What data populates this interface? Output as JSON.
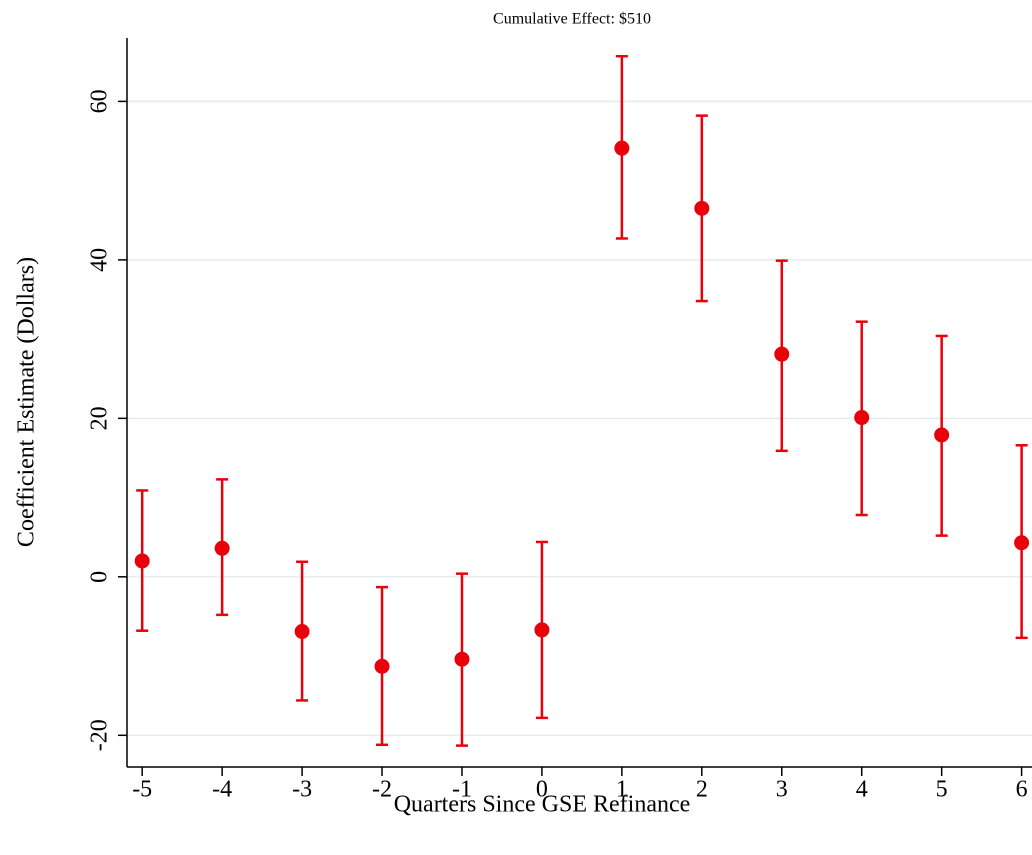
{
  "chart_data": {
    "type": "scatter",
    "title": "Cumulative Effect: $510",
    "x_label": "Quarters Since GSE Refinance",
    "y_label": "Coefficient Estimate (Dollars)",
    "x": [
      -5,
      -4,
      -3,
      -2,
      -1,
      0,
      1,
      2,
      3,
      4,
      5,
      6
    ],
    "series": [
      {
        "color": "#e8000b",
        "values": [
          2,
          3.6,
          -6.9,
          -11.3,
          -10.4,
          -6.7,
          54.1,
          46.5,
          28.1,
          20.1,
          17.9,
          4.3
        ],
        "lower": [
          -6.8,
          -4.8,
          -15.6,
          -21.2,
          -21.3,
          -17.8,
          42.7,
          34.8,
          15.9,
          7.8,
          5.2,
          -7.7
        ],
        "upper": [
          10.9,
          12.3,
          1.9,
          -1.3,
          0.4,
          4.4,
          65.7,
          58.2,
          39.9,
          32.2,
          30.4,
          16.6
        ]
      }
    ],
    "xlim": [
      -5.19,
      6.13
    ],
    "ylim": [
      -24,
      68
    ],
    "xticks": [
      -5,
      -4,
      -3,
      -2,
      -1,
      0,
      1,
      2,
      3,
      4,
      5,
      6
    ],
    "yticks": [
      -20,
      0,
      20,
      40,
      60
    ],
    "grid": true,
    "grid_color": "#e3ecef"
  }
}
